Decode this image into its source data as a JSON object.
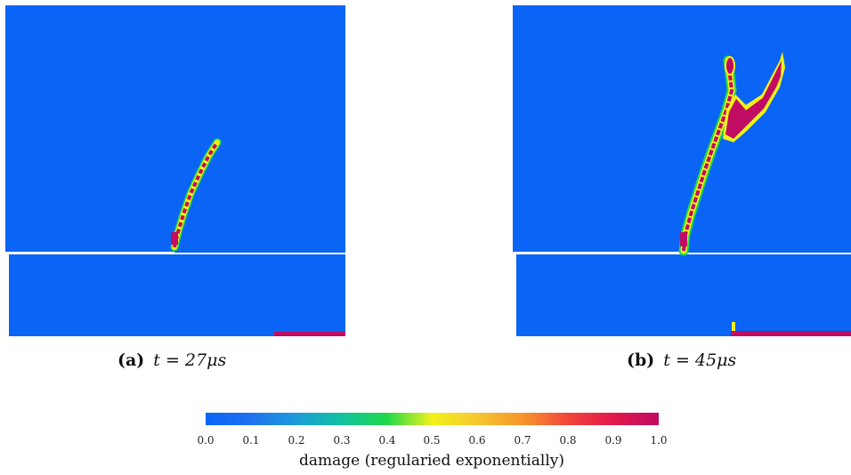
{
  "panels": [
    {
      "id": "a",
      "caption_tag": "(a)",
      "caption_expr": "t = 27μs"
    },
    {
      "id": "b",
      "caption_tag": "(b)",
      "caption_expr": "t = 45μs"
    }
  ],
  "colorbar": {
    "title": "damage (regularied exponentially)",
    "ticks": [
      "0.0",
      "0.1",
      "0.2",
      "0.3",
      "0.4",
      "0.5",
      "0.6",
      "0.7",
      "0.8",
      "0.9",
      "1.0"
    ],
    "colors": {
      "intact": "#0a64f5",
      "damaged": "#c00c63",
      "mid_red": "#e2184a",
      "yellow": "#f2f21a",
      "green": "#1fd84a",
      "notch": "#ffffff"
    }
  }
}
